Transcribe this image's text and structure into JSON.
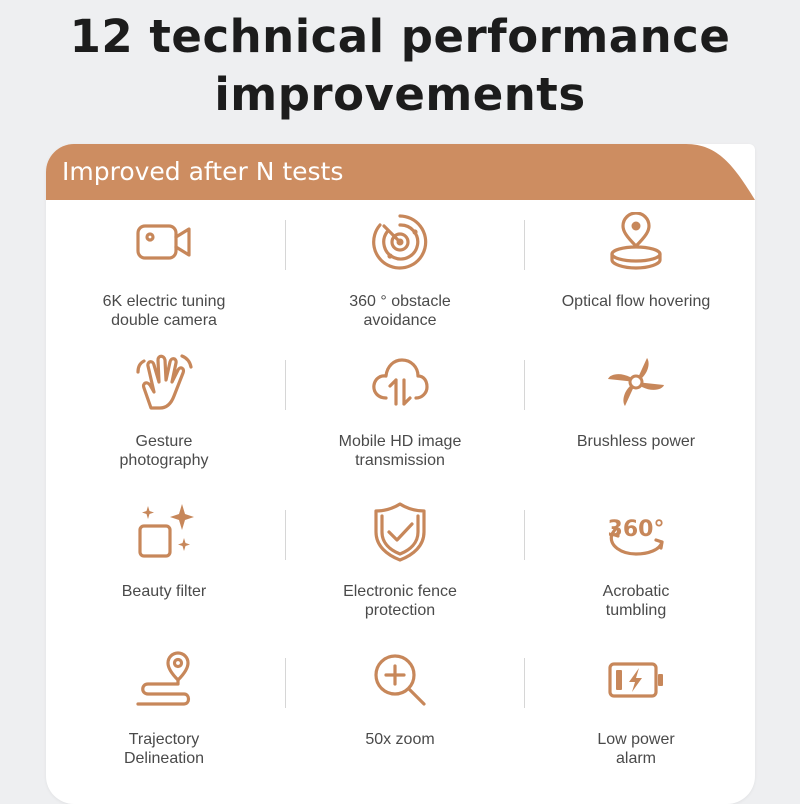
{
  "headline": {
    "line1": "12 technical performance",
    "line2": "improvements"
  },
  "banner": {
    "text": "Improved after N tests",
    "color": "#cd8d61"
  },
  "accent_color": "#c7875a",
  "features": [
    {
      "icon": "video-camera-icon",
      "line1": "6K electric tuning",
      "line2": "double camera"
    },
    {
      "icon": "radar-icon",
      "line1": "360 ° obstacle",
      "line2": "avoidance"
    },
    {
      "icon": "location-platform-icon",
      "line1": "Optical flow hovering",
      "line2": ""
    },
    {
      "icon": "hand-gesture-icon",
      "line1": "Gesture",
      "line2": "photography"
    },
    {
      "icon": "cloud-transfer-icon",
      "line1": "Mobile HD image",
      "line2": "transmission"
    },
    {
      "icon": "propeller-icon",
      "line1": "Brushless power",
      "line2": ""
    },
    {
      "icon": "sparkle-square-icon",
      "line1": "Beauty filter",
      "line2": ""
    },
    {
      "icon": "shield-check-icon",
      "line1": "Electronic fence",
      "line2": "protection"
    },
    {
      "icon": "rotate-360-icon",
      "icon_text": "360°",
      "line1": "Acrobatic",
      "line2": "tumbling"
    },
    {
      "icon": "route-pin-icon",
      "line1": "Trajectory",
      "line2": "Delineation"
    },
    {
      "icon": "zoom-in-icon",
      "line1": "50x zoom",
      "line2": ""
    },
    {
      "icon": "low-battery-icon",
      "line1": "Low power",
      "line2": "alarm"
    }
  ]
}
